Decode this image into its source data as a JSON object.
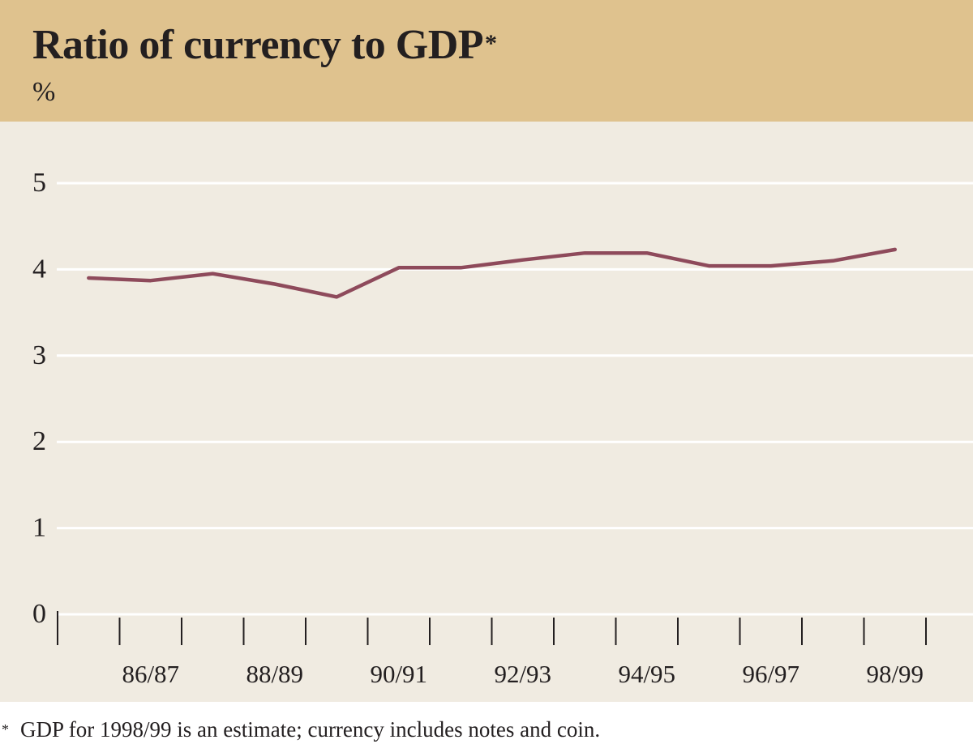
{
  "chart_data": {
    "type": "line",
    "title": "Ratio of currency to GDP",
    "title_mark": "*",
    "ylabel": "%",
    "xlabel": "",
    "ylim": [
      0,
      5
    ],
    "y_ticks": [
      0,
      1,
      2,
      3,
      4,
      5
    ],
    "x_tick_labels": [
      "86/87",
      "88/89",
      "90/91",
      "92/93",
      "94/95",
      "96/97",
      "98/99"
    ],
    "grid": true,
    "series": [
      {
        "name": "Ratio of currency to GDP",
        "color": "#8e4a5b",
        "x": [
          "85/86",
          "86/87",
          "87/88",
          "88/89",
          "89/90",
          "90/91",
          "91/92",
          "92/93",
          "93/94",
          "94/95",
          "95/96",
          "96/97",
          "97/98",
          "98/99"
        ],
        "values": [
          3.9,
          3.87,
          3.95,
          3.83,
          3.68,
          4.02,
          4.02,
          4.11,
          4.19,
          4.19,
          4.04,
          4.04,
          4.1,
          4.23
        ]
      }
    ]
  },
  "footnote": {
    "mark": "*",
    "text": "GDP for 1998/99 is an estimate; currency includes notes and coin."
  },
  "colors": {
    "header_bg": "#dfc28e",
    "plot_bg": "#f0ebe1",
    "gridline": "#ffffff",
    "axis": "#231f20",
    "line": "#8e4a5b"
  }
}
